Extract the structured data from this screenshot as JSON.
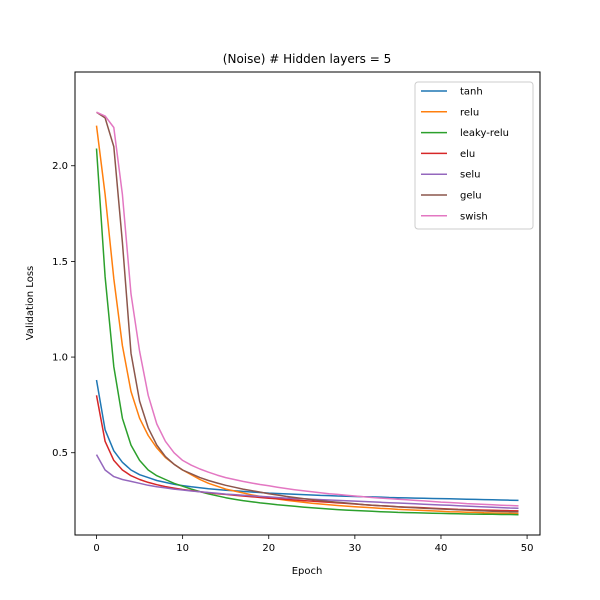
{
  "chart_data": {
    "type": "line",
    "title": "(Noise) # Hidden layers = 5",
    "xlabel": "Epoch",
    "ylabel": "Validation Loss",
    "xlim": [
      -2.5,
      51.5
    ],
    "ylim": [
      0.07,
      2.49
    ],
    "xticks": [
      0,
      10,
      20,
      30,
      40,
      50
    ],
    "yticks": [
      0.5,
      1.0,
      1.5,
      2.0
    ],
    "ytick_labels": [
      "0.5",
      "1.0",
      "1.5",
      "2.0"
    ],
    "grid": false,
    "legend": "top-right",
    "series": [
      {
        "name": "tanh",
        "color": "#1f77b4",
        "values": [
          0.88,
          0.62,
          0.51,
          0.45,
          0.41,
          0.385,
          0.37,
          0.355,
          0.345,
          0.335,
          0.328,
          0.322,
          0.317,
          0.312,
          0.308,
          0.304,
          0.301,
          0.298,
          0.295,
          0.292,
          0.289,
          0.287,
          0.285,
          0.283,
          0.281,
          0.279,
          0.277,
          0.276,
          0.274,
          0.273,
          0.271,
          0.27,
          0.269,
          0.268,
          0.266,
          0.265,
          0.264,
          0.263,
          0.262,
          0.261,
          0.26,
          0.259,
          0.258,
          0.257,
          0.256,
          0.255,
          0.254,
          0.253,
          0.252,
          0.251
        ]
      },
      {
        "name": "relu",
        "color": "#ff7f0e",
        "values": [
          2.21,
          1.85,
          1.41,
          1.06,
          0.82,
          0.68,
          0.59,
          0.525,
          0.475,
          0.44,
          0.41,
          0.385,
          0.36,
          0.34,
          0.325,
          0.31,
          0.3,
          0.29,
          0.28,
          0.272,
          0.265,
          0.258,
          0.252,
          0.246,
          0.241,
          0.236,
          0.232,
          0.228,
          0.224,
          0.221,
          0.218,
          0.215,
          0.212,
          0.209,
          0.207,
          0.204,
          0.202,
          0.2,
          0.198,
          0.196,
          0.194,
          0.192,
          0.191,
          0.189,
          0.188,
          0.186,
          0.185,
          0.184,
          0.183,
          0.182
        ]
      },
      {
        "name": "leaky-relu",
        "color": "#2ca02c",
        "values": [
          2.09,
          1.42,
          0.95,
          0.68,
          0.54,
          0.46,
          0.41,
          0.38,
          0.36,
          0.34,
          0.325,
          0.31,
          0.297,
          0.285,
          0.275,
          0.265,
          0.257,
          0.25,
          0.244,
          0.238,
          0.233,
          0.228,
          0.224,
          0.22,
          0.216,
          0.212,
          0.209,
          0.206,
          0.203,
          0.2,
          0.198,
          0.196,
          0.194,
          0.192,
          0.19,
          0.188,
          0.187,
          0.186,
          0.185,
          0.184,
          0.183,
          0.182,
          0.181,
          0.18,
          0.179,
          0.178,
          0.178,
          0.177,
          0.177,
          0.176
        ]
      },
      {
        "name": "elu",
        "color": "#d62728",
        "values": [
          0.8,
          0.56,
          0.46,
          0.41,
          0.38,
          0.36,
          0.345,
          0.333,
          0.323,
          0.315,
          0.308,
          0.302,
          0.296,
          0.291,
          0.286,
          0.282,
          0.278,
          0.274,
          0.27,
          0.266,
          0.262,
          0.259,
          0.256,
          0.253,
          0.25,
          0.247,
          0.244,
          0.241,
          0.238,
          0.235,
          0.232,
          0.229,
          0.226,
          0.223,
          0.221,
          0.218,
          0.216,
          0.214,
          0.212,
          0.21,
          0.208,
          0.206,
          0.204,
          0.203,
          0.201,
          0.2,
          0.199,
          0.198,
          0.197,
          0.196
        ]
      },
      {
        "name": "selu",
        "color": "#9467bd",
        "values": [
          0.49,
          0.41,
          0.375,
          0.36,
          0.35,
          0.34,
          0.33,
          0.322,
          0.316,
          0.31,
          0.305,
          0.3,
          0.296,
          0.292,
          0.288,
          0.284,
          0.281,
          0.278,
          0.275,
          0.272,
          0.269,
          0.266,
          0.263,
          0.261,
          0.259,
          0.257,
          0.255,
          0.253,
          0.251,
          0.249,
          0.247,
          0.245,
          0.243,
          0.241,
          0.239,
          0.237,
          0.235,
          0.233,
          0.231,
          0.229,
          0.227,
          0.225,
          0.223,
          0.221,
          0.219,
          0.217,
          0.215,
          0.213,
          0.211,
          0.21
        ]
      },
      {
        "name": "gelu",
        "color": "#8c564b",
        "values": [
          2.28,
          2.25,
          2.1,
          1.6,
          1.02,
          0.77,
          0.63,
          0.54,
          0.48,
          0.44,
          0.41,
          0.39,
          0.37,
          0.355,
          0.342,
          0.33,
          0.32,
          0.31,
          0.302,
          0.294,
          0.286,
          0.279,
          0.272,
          0.266,
          0.26,
          0.255,
          0.25,
          0.245,
          0.241,
          0.237,
          0.233,
          0.229,
          0.226,
          0.223,
          0.22,
          0.217,
          0.214,
          0.212,
          0.21,
          0.208,
          0.206,
          0.204,
          0.202,
          0.2,
          0.198,
          0.196,
          0.194,
          0.193,
          0.192,
          0.191
        ]
      },
      {
        "name": "swish",
        "color": "#e377c2",
        "values": [
          2.28,
          2.26,
          2.2,
          1.85,
          1.33,
          1.03,
          0.8,
          0.65,
          0.56,
          0.5,
          0.46,
          0.435,
          0.415,
          0.398,
          0.383,
          0.37,
          0.36,
          0.35,
          0.342,
          0.334,
          0.327,
          0.32,
          0.313,
          0.307,
          0.301,
          0.296,
          0.291,
          0.286,
          0.282,
          0.278,
          0.274,
          0.27,
          0.266,
          0.263,
          0.26,
          0.257,
          0.254,
          0.251,
          0.248,
          0.245,
          0.242,
          0.24,
          0.237,
          0.234,
          0.232,
          0.23,
          0.228,
          0.226,
          0.224,
          0.222
        ]
      }
    ]
  }
}
